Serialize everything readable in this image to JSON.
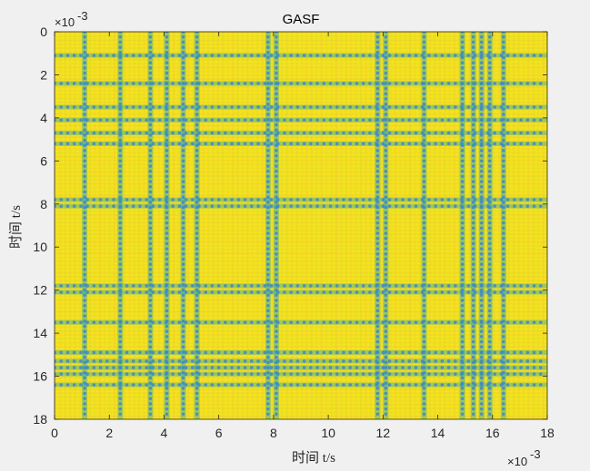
{
  "chart_data": {
    "type": "heatmap",
    "title": "GASF",
    "xlabel": "时间 t/s",
    "ylabel": "时间 t/s",
    "x_exponent_label": "×10",
    "x_exponent_power": "-3",
    "y_exponent_label": "×10",
    "y_exponent_power": "-3",
    "xlim": [
      0,
      0.018
    ],
    "ylim": [
      0,
      0.018
    ],
    "y_reversed": true,
    "x_ticks": [
      {
        "value": 0,
        "label": "0"
      },
      {
        "value": 0.002,
        "label": "2"
      },
      {
        "value": 0.004,
        "label": "4"
      },
      {
        "value": 0.006,
        "label": "6"
      },
      {
        "value": 0.008,
        "label": "8"
      },
      {
        "value": 0.01,
        "label": "10"
      },
      {
        "value": 0.012,
        "label": "12"
      },
      {
        "value": 0.014,
        "label": "14"
      },
      {
        "value": 0.016,
        "label": "16"
      },
      {
        "value": 0.018,
        "label": "18"
      }
    ],
    "y_ticks": [
      {
        "value": 0,
        "label": "0"
      },
      {
        "value": 0.002,
        "label": "2"
      },
      {
        "value": 0.004,
        "label": "4"
      },
      {
        "value": 0.006,
        "label": "6"
      },
      {
        "value": 0.008,
        "label": "8"
      },
      {
        "value": 0.01,
        "label": "10"
      },
      {
        "value": 0.012,
        "label": "12"
      },
      {
        "value": 0.014,
        "label": "14"
      },
      {
        "value": 0.016,
        "label": "16"
      },
      {
        "value": 0.018,
        "label": "18"
      }
    ],
    "colormap": "parula",
    "value_range": [
      -1,
      1
    ],
    "background_color": "#f5e31e",
    "dark_color": "#3f86c9",
    "band_centers_s": [
      0.0011,
      0.0024,
      0.0035,
      0.0041,
      0.0047,
      0.0052,
      0.0078,
      0.0081,
      0.0118,
      0.0121,
      0.0135,
      0.0149,
      0.0153,
      0.0156,
      0.0159,
      0.0164
    ]
  }
}
